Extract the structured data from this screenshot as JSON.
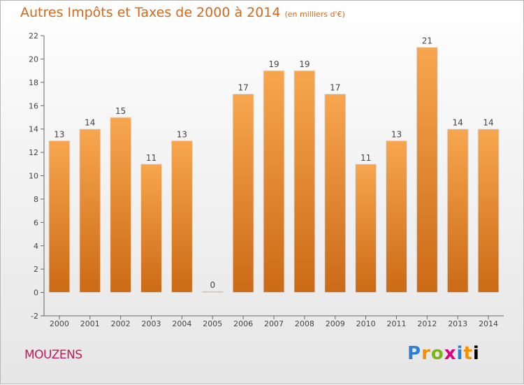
{
  "header": {
    "title": "Autres Impôts et Taxes de 2000 à 2014",
    "subtitle": "(en milliers d'€)"
  },
  "footer": {
    "commune": "MOUZENS",
    "logo_letters": [
      "P",
      "r",
      "o",
      "x",
      "i",
      "t",
      "i"
    ]
  },
  "chart_data": {
    "type": "bar",
    "title": "Autres Impôts et Taxes de 2000 à 2014",
    "subtitle": "(en milliers d'€)",
    "categories": [
      "2000",
      "2001",
      "2002",
      "2003",
      "2004",
      "2005",
      "2006",
      "2007",
      "2008",
      "2009",
      "2010",
      "2011",
      "2012",
      "2013",
      "2014"
    ],
    "values": [
      13,
      14,
      15,
      11,
      13,
      0,
      17,
      19,
      19,
      17,
      11,
      13,
      21,
      14,
      14
    ],
    "data_labels": [
      "13",
      "14",
      "15",
      "11",
      "13",
      "0",
      "17",
      "19",
      "19",
      "17",
      "11",
      "13",
      "21",
      "14",
      "14"
    ],
    "ylim": [
      -2,
      22
    ],
    "yticks": [
      -2,
      0,
      2,
      4,
      6,
      8,
      10,
      12,
      14,
      16,
      18,
      20,
      22
    ],
    "grid": false,
    "bar_color_top": "#f7a64f",
    "bar_color_bottom": "#cc6a16"
  }
}
